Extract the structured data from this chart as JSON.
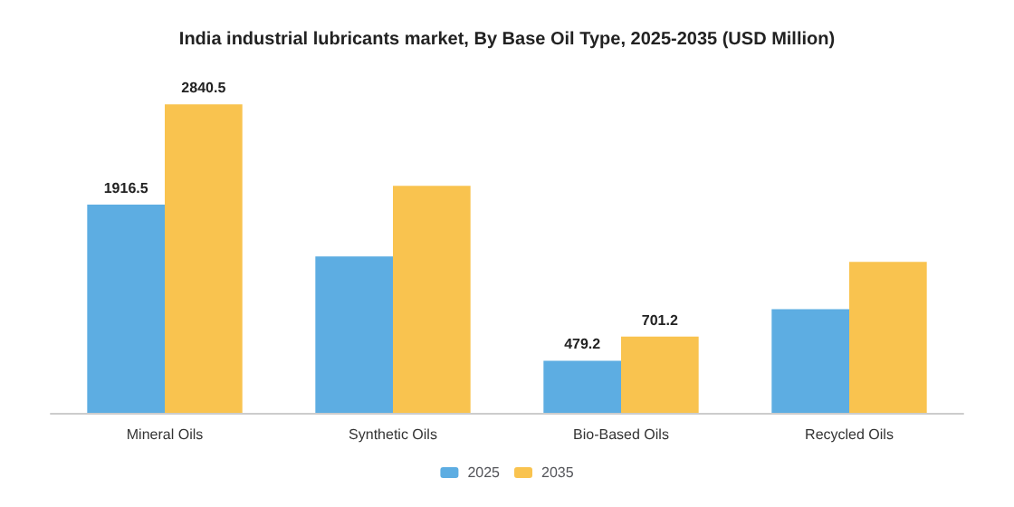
{
  "chart_data": {
    "type": "bar",
    "title": "India industrial lubricants market, By Base Oil Type, 2025-2035 (USD Million)",
    "categories": [
      "Mineral Oils",
      "Synthetic Oils",
      "Bio-Based Oils",
      "Recycled Oils"
    ],
    "series": [
      {
        "name": "2025",
        "color": "#5dade2",
        "values": [
          1916.5,
          1440,
          479.2,
          955
        ],
        "value_labels": [
          "1916.5",
          null,
          "479.2",
          null
        ]
      },
      {
        "name": "2035",
        "color": "#f9c34f",
        "values": [
          2840.5,
          2090,
          701.2,
          1390
        ],
        "value_labels": [
          "2840.5",
          null,
          "701.2",
          null
        ]
      }
    ],
    "legend": "bottom"
  }
}
